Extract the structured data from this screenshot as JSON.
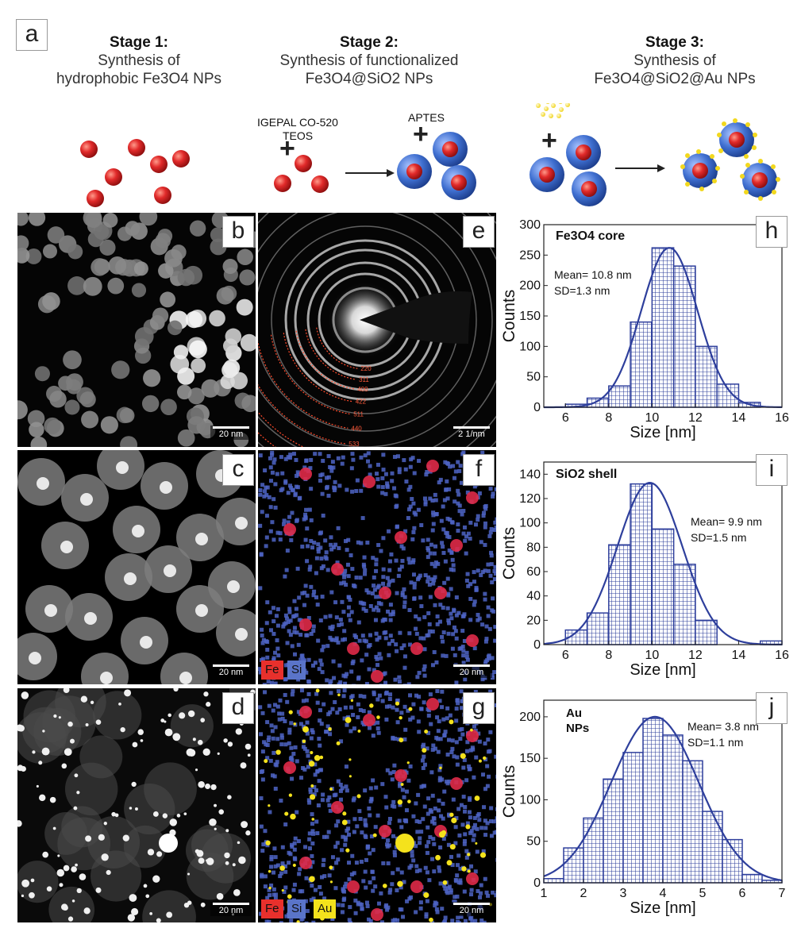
{
  "figure": {
    "label_a": "a",
    "stage1": {
      "title": "Stage 1:",
      "line1": "Synthesis of",
      "line2": "hydrophobic Fe3O4 NPs"
    },
    "stage2": {
      "title": "Stage 2:",
      "line1": "Synthesis of functionalized",
      "line2": "Fe3O4@SiO2 NPs"
    },
    "stage3": {
      "title": "Stage 3:",
      "line1": "Synthesis of",
      "line2": "Fe3O4@SiO2@Au NPs"
    },
    "reagent1": "IGEPAL CO-520",
    "reagent2": "TEOS",
    "reagent3": "APTES",
    "plus": "+",
    "panels": {
      "b": "b",
      "c": "c",
      "d": "d",
      "e": "e",
      "f": "f",
      "g": "g",
      "h": "h",
      "i": "i",
      "j": "j"
    },
    "scalebars": {
      "nm20": "20 nm",
      "diff": "2 1/nm"
    },
    "diffraction_rings": [
      "220",
      "311",
      "400",
      "422",
      "511",
      "440",
      "533",
      "444",
      "731",
      "800"
    ],
    "legend": {
      "fe": "Fe",
      "si": "Si",
      "au": "Au"
    },
    "colors": {
      "fe": "#e8302c",
      "si": "#5a74c9",
      "au": "#f4e21c",
      "particle_red": "#e12a2a",
      "shell_blue": "#3f6fd0",
      "bar_blue": "#2e3f9c"
    }
  },
  "chart_data": [
    {
      "type": "bar",
      "panel": "h",
      "title": "Fe3O4 core",
      "annotation_mean": "Mean= 10.8 nm",
      "annotation_sd": "SD=1.3 nm",
      "xlabel": "Size [nm]",
      "ylabel": "Counts",
      "xlim": [
        5,
        16
      ],
      "ylim": [
        0,
        300
      ],
      "xticks": [
        6,
        8,
        10,
        12,
        14,
        16
      ],
      "yticks": [
        0,
        50,
        100,
        150,
        200,
        250,
        300
      ],
      "bins": [
        [
          6,
          7,
          5
        ],
        [
          7,
          8,
          15
        ],
        [
          8,
          9,
          35
        ],
        [
          9,
          10,
          140
        ],
        [
          10,
          11,
          262
        ],
        [
          11,
          12,
          232
        ],
        [
          12,
          13,
          100
        ],
        [
          13,
          14,
          38
        ],
        [
          14,
          15,
          8
        ]
      ],
      "fit": {
        "mean": 10.8,
        "sd": 1.3,
        "peak": 262
      }
    },
    {
      "type": "bar",
      "panel": "i",
      "title": "SiO2 shell",
      "annotation_mean": "Mean= 9.9 nm",
      "annotation_sd": "SD=1.5 nm",
      "xlabel": "Size [nm]",
      "ylabel": "Counts",
      "xlim": [
        5,
        16
      ],
      "ylim": [
        0,
        150
      ],
      "xticks": [
        6,
        8,
        10,
        12,
        14,
        16
      ],
      "yticks": [
        0,
        20,
        40,
        60,
        80,
        100,
        120,
        140
      ],
      "bins": [
        [
          6,
          7,
          12
        ],
        [
          7,
          8,
          26
        ],
        [
          8,
          9,
          82
        ],
        [
          9,
          10,
          132
        ],
        [
          10,
          11,
          95
        ],
        [
          11,
          12,
          66
        ],
        [
          12,
          13,
          20
        ],
        [
          15,
          16,
          3
        ]
      ],
      "fit": {
        "mean": 9.9,
        "sd": 1.5,
        "peak": 133
      }
    },
    {
      "type": "bar",
      "panel": "j",
      "title": "Au NPs",
      "annotation_mean": "Mean= 3.8 nm",
      "annotation_sd": "SD=1.1 nm",
      "xlabel": "Size [nm]",
      "ylabel": "Counts",
      "xlim": [
        1,
        7
      ],
      "ylim": [
        0,
        220
      ],
      "xticks": [
        1,
        2,
        3,
        4,
        5,
        6,
        7
      ],
      "yticks": [
        0,
        50,
        100,
        150,
        200
      ],
      "bins": [
        [
          1,
          1.5,
          5
        ],
        [
          1.5,
          2,
          42
        ],
        [
          2,
          2.5,
          78
        ],
        [
          2.5,
          3,
          125
        ],
        [
          3,
          3.5,
          157
        ],
        [
          3.5,
          4,
          198
        ],
        [
          4,
          4.5,
          178
        ],
        [
          4.5,
          5,
          147
        ],
        [
          5,
          5.5,
          86
        ],
        [
          5.5,
          6,
          52
        ],
        [
          6,
          6.5,
          10
        ],
        [
          6.5,
          7,
          3
        ]
      ],
      "fit": {
        "mean": 3.8,
        "sd": 1.1,
        "peak": 200
      }
    }
  ]
}
